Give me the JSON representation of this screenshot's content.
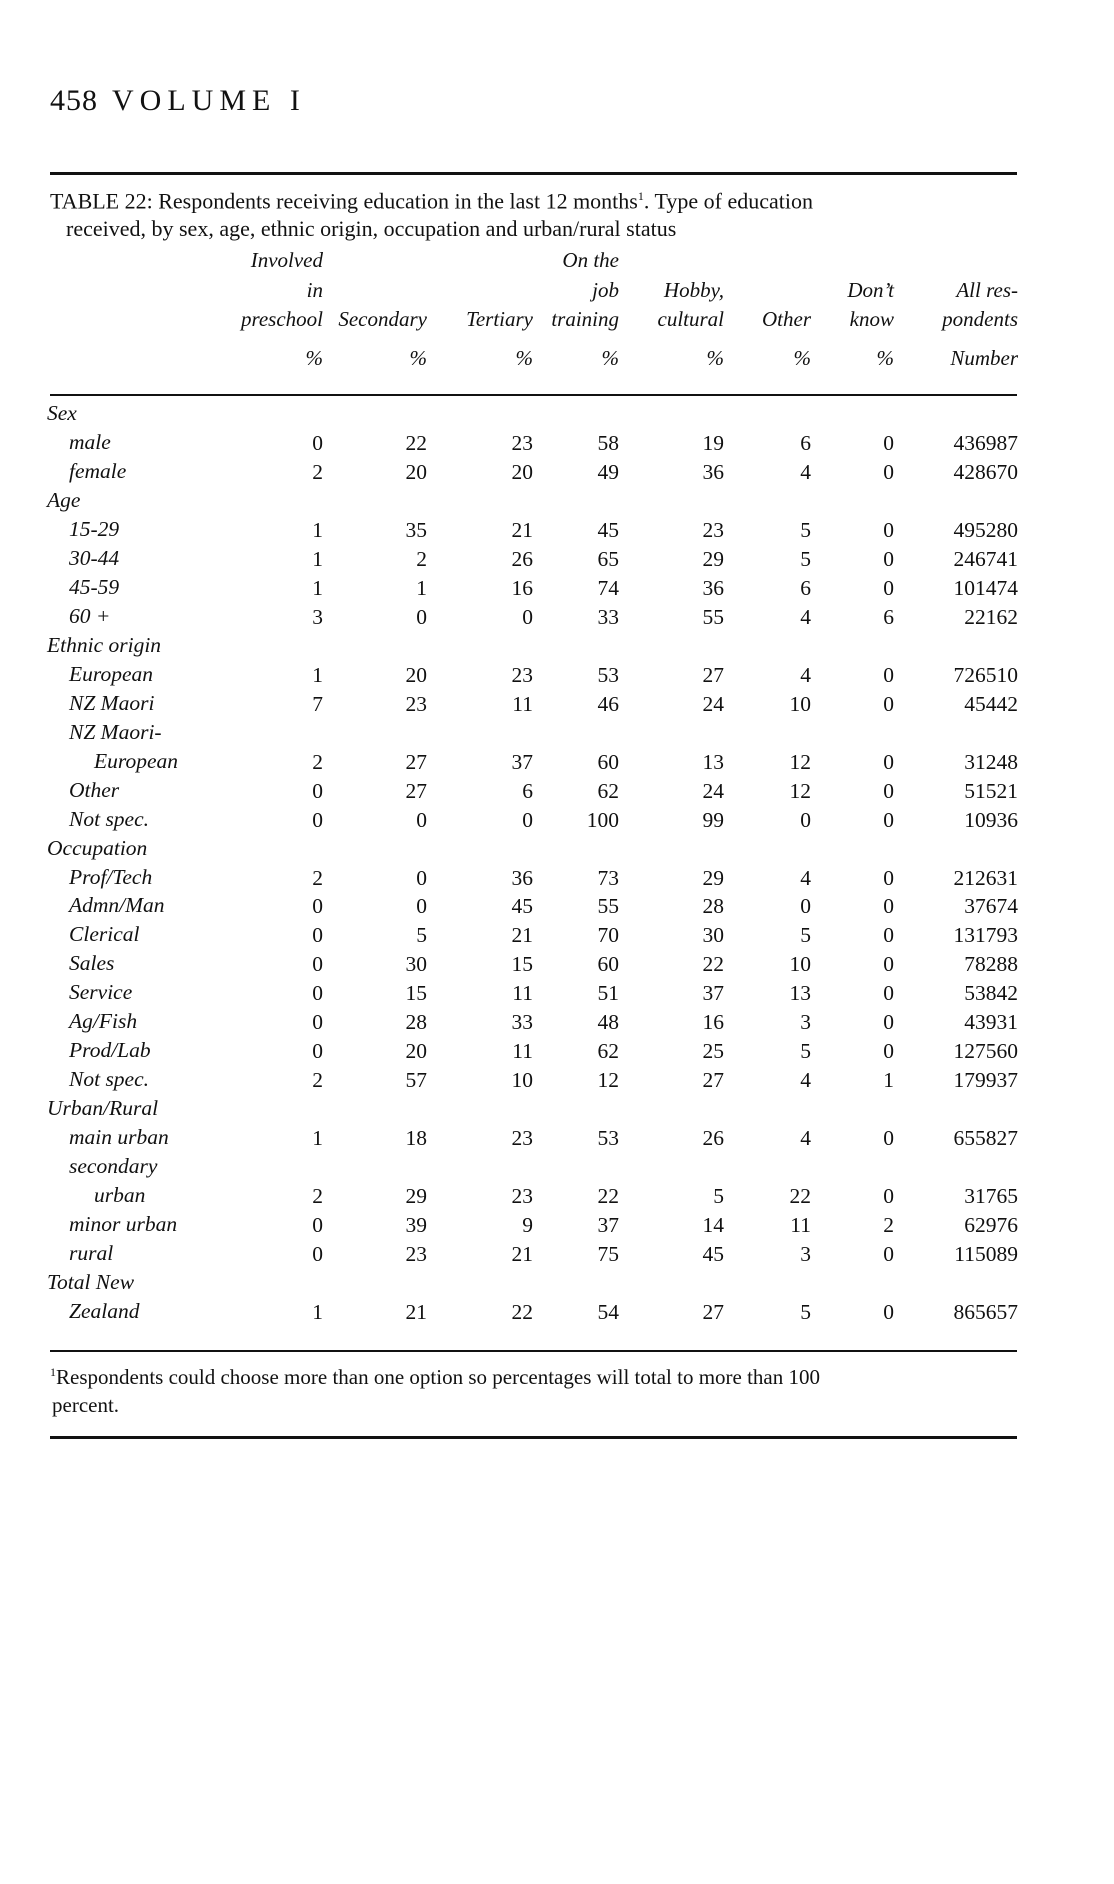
{
  "page": {
    "number": "458",
    "volume": "VOLUME I"
  },
  "table": {
    "title_line1": "TABLE 22: Respondents receiving education in the last 12 months",
    "title_sup": "1",
    "title_line1_end": ". Type of education",
    "title_line2": "received, by sex, age, ethnic origin, occupation and urban/rural status",
    "columns": [
      {
        "lines": [
          "Involved",
          "in",
          "preschool"
        ],
        "unit": "%"
      },
      {
        "lines": [
          "",
          "",
          "Secondary"
        ],
        "unit": "%"
      },
      {
        "lines": [
          "",
          "",
          "Tertiary"
        ],
        "unit": "%"
      },
      {
        "lines": [
          "On the",
          "job",
          "training"
        ],
        "unit": "%"
      },
      {
        "lines": [
          "",
          "Hobby,",
          "cultural"
        ],
        "unit": "%"
      },
      {
        "lines": [
          "",
          "",
          "Other"
        ],
        "unit": "%"
      },
      {
        "lines": [
          "",
          "Don’t",
          "know"
        ],
        "unit": "%"
      },
      {
        "lines": [
          "",
          "All res-",
          "pondents"
        ],
        "unit": "Number"
      }
    ],
    "rows": [
      {
        "label": "Sex",
        "level": 0,
        "values": []
      },
      {
        "label": "male",
        "level": 1,
        "values": [
          "0",
          "22",
          "23",
          "58",
          "19",
          "6",
          "0",
          "436987"
        ]
      },
      {
        "label": "female",
        "level": 1,
        "values": [
          "2",
          "20",
          "20",
          "49",
          "36",
          "4",
          "0",
          "428670"
        ]
      },
      {
        "label": "Age",
        "level": 0,
        "values": []
      },
      {
        "label": "15-29",
        "level": 1,
        "values": [
          "1",
          "35",
          "21",
          "45",
          "23",
          "5",
          "0",
          "495280"
        ]
      },
      {
        "label": "30-44",
        "level": 1,
        "values": [
          "1",
          "2",
          "26",
          "65",
          "29",
          "5",
          "0",
          "246741"
        ]
      },
      {
        "label": "45-59",
        "level": 1,
        "values": [
          "1",
          "1",
          "16",
          "74",
          "36",
          "6",
          "0",
          "101474"
        ]
      },
      {
        "label": "60 +",
        "level": 1,
        "values": [
          "3",
          "0",
          "0",
          "33",
          "55",
          "4",
          "6",
          "22162"
        ]
      },
      {
        "label": "Ethnic origin",
        "level": 0,
        "values": []
      },
      {
        "label": "European",
        "level": 1,
        "values": [
          "1",
          "20",
          "23",
          "53",
          "27",
          "4",
          "0",
          "726510"
        ]
      },
      {
        "label": "NZ Maori",
        "level": 1,
        "values": [
          "7",
          "23",
          "11",
          "46",
          "24",
          "10",
          "0",
          "45442"
        ]
      },
      {
        "label": "NZ Maori-",
        "level": 1,
        "values": []
      },
      {
        "label": "European",
        "level": 2,
        "values": [
          "2",
          "27",
          "37",
          "60",
          "13",
          "12",
          "0",
          "31248"
        ]
      },
      {
        "label": "Other",
        "level": 1,
        "values": [
          "0",
          "27",
          "6",
          "62",
          "24",
          "12",
          "0",
          "51521"
        ]
      },
      {
        "label": "Not spec.",
        "level": 1,
        "values": [
          "0",
          "0",
          "0",
          "100",
          "99",
          "0",
          "0",
          "10936"
        ]
      },
      {
        "label": "Occupation",
        "level": 0,
        "values": []
      },
      {
        "label": "Prof/Tech",
        "level": 1,
        "values": [
          "2",
          "0",
          "36",
          "73",
          "29",
          "4",
          "0",
          "212631"
        ]
      },
      {
        "label": "Admn/Man",
        "level": 1,
        "values": [
          "0",
          "0",
          "45",
          "55",
          "28",
          "0",
          "0",
          "37674"
        ]
      },
      {
        "label": "Clerical",
        "level": 1,
        "values": [
          "0",
          "5",
          "21",
          "70",
          "30",
          "5",
          "0",
          "131793"
        ]
      },
      {
        "label": "Sales",
        "level": 1,
        "values": [
          "0",
          "30",
          "15",
          "60",
          "22",
          "10",
          "0",
          "78288"
        ]
      },
      {
        "label": "Service",
        "level": 1,
        "values": [
          "0",
          "15",
          "11",
          "51",
          "37",
          "13",
          "0",
          "53842"
        ]
      },
      {
        "label": "Ag/Fish",
        "level": 1,
        "values": [
          "0",
          "28",
          "33",
          "48",
          "16",
          "3",
          "0",
          "43931"
        ]
      },
      {
        "label": "Prod/Lab",
        "level": 1,
        "values": [
          "0",
          "20",
          "11",
          "62",
          "25",
          "5",
          "0",
          "127560"
        ]
      },
      {
        "label": "Not spec.",
        "level": 1,
        "values": [
          "2",
          "57",
          "10",
          "12",
          "27",
          "4",
          "1",
          "179937"
        ]
      },
      {
        "label": "Urban/Rural",
        "level": 0,
        "values": []
      },
      {
        "label": "main urban",
        "level": 1,
        "values": [
          "1",
          "18",
          "23",
          "53",
          "26",
          "4",
          "0",
          "655827"
        ]
      },
      {
        "label": "secondary",
        "level": 1,
        "values": []
      },
      {
        "label": "urban",
        "level": 2,
        "values": [
          "2",
          "29",
          "23",
          "22",
          "5",
          "22",
          "0",
          "31765"
        ]
      },
      {
        "label": "minor urban",
        "level": 1,
        "values": [
          "0",
          "39",
          "9",
          "37",
          "14",
          "11",
          "2",
          "62976"
        ]
      },
      {
        "label": "rural",
        "level": 1,
        "values": [
          "0",
          "23",
          "21",
          "75",
          "45",
          "3",
          "0",
          "115089"
        ]
      },
      {
        "label": "Total New",
        "level": 0,
        "values": []
      },
      {
        "label": "Zealand",
        "level": 1,
        "values": [
          "1",
          "21",
          "22",
          "54",
          "27",
          "5",
          "0",
          "865657"
        ]
      }
    ],
    "footnote_mark": "1",
    "footnote_line1": "Respondents could choose more than one option so percentages will total to more than 100",
    "footnote_line2": "percent."
  }
}
